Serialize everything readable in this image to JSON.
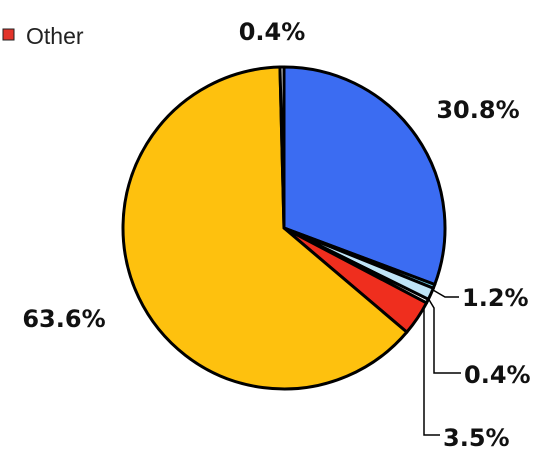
{
  "chart_data": {
    "type": "pie",
    "title": "",
    "start_angle_deg": 0,
    "direction": "clockwise",
    "legend": {
      "placement": "top-left",
      "entries": [
        {
          "label": "Other",
          "color": "#e2332a"
        }
      ]
    },
    "slices": [
      {
        "value": 30.8,
        "label": "30.8%",
        "color": "#3b6cf2"
      },
      {
        "value": 0.4,
        "label": "",
        "color": "#6ed0f0"
      },
      {
        "value": 1.2,
        "label": "1.2%",
        "color": "#bfe4f6"
      },
      {
        "value": 0.4,
        "label": "0.4%",
        "color": "#ffffff"
      },
      {
        "value": 3.5,
        "label": "3.5%",
        "color": "#ef2e1e"
      },
      {
        "value": 63.6,
        "label": "63.6%",
        "color": "#fec10e"
      },
      {
        "value": 0.4,
        "label": "0.4%",
        "color": "#ffffff"
      }
    ]
  }
}
